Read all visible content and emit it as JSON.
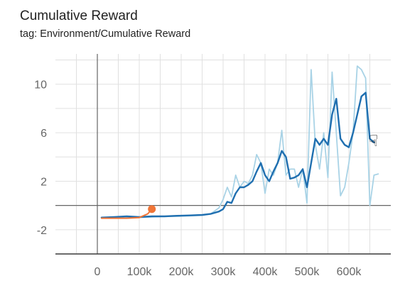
{
  "card": {
    "title": "Cumulative Reward",
    "subtitle": "tag: Environment/Cumulative Reward"
  },
  "cursor": {
    "icon": "hand-pointer-icon",
    "glyph": "☟"
  },
  "chart_data": {
    "type": "line",
    "title": "Cumulative Reward",
    "subtitle": "tag: Environment/Cumulative Reward",
    "xlabel": "",
    "ylabel": "",
    "xlim": [
      -100000,
      700000
    ],
    "ylim": [
      -4,
      12.5
    ],
    "x_ticks": [
      0,
      100000,
      200000,
      300000,
      400000,
      500000,
      600000
    ],
    "x_tick_labels": [
      "0",
      "100k",
      "200k",
      "300k",
      "400k",
      "500k",
      "600k"
    ],
    "y_ticks": [
      -2,
      2,
      6,
      10
    ],
    "y_tick_labels": [
      "-2",
      "2",
      "6",
      "10"
    ],
    "grid": true,
    "colors": {
      "smoothed": "#1f6fb0",
      "raw": "#a9d3e6",
      "orange": "#f07537",
      "orange_raw": "#f8b89a",
      "grid": "#e0e0e0",
      "axis": "#666666",
      "frame_bottom": "#3a3a3a"
    },
    "series": [
      {
        "role": "raw",
        "color": "#a9d3e6",
        "x": [
          10000,
          40000,
          70000,
          100000,
          130000,
          160000,
          190000,
          220000,
          250000,
          270000,
          290000,
          300000,
          310000,
          320000,
          330000,
          340000,
          350000,
          360000,
          370000,
          380000,
          390000,
          400000,
          410000,
          420000,
          430000,
          440000,
          450000,
          460000,
          470000,
          480000,
          490000,
          500000,
          510000,
          520000,
          530000,
          540000,
          550000,
          560000,
          570000,
          580000,
          590000,
          600000,
          610000,
          620000,
          630000,
          640000,
          650000,
          660000,
          670000
        ],
        "values": [
          -1,
          -1,
          -0.9,
          -1,
          -0.95,
          -0.9,
          -0.9,
          -0.85,
          -0.8,
          -0.7,
          -0.2,
          0.5,
          1.5,
          0.7,
          2.5,
          1.5,
          2,
          1.8,
          2.5,
          4.2,
          3.5,
          1,
          3,
          2.5,
          3.5,
          6.2,
          2.5,
          3,
          3,
          1.5,
          3,
          0.2,
          11.2,
          5,
          3,
          6,
          2.3,
          11,
          6,
          0.8,
          1.5,
          3.5,
          6,
          11.5,
          11.2,
          10.5,
          0,
          2.5,
          2.6
        ]
      },
      {
        "role": "smoothed",
        "color": "#1f6fb0",
        "x": [
          10000,
          40000,
          70000,
          100000,
          130000,
          160000,
          190000,
          220000,
          250000,
          270000,
          290000,
          300000,
          310000,
          320000,
          330000,
          340000,
          350000,
          360000,
          370000,
          380000,
          390000,
          400000,
          410000,
          420000,
          430000,
          440000,
          450000,
          460000,
          470000,
          480000,
          490000,
          500000,
          510000,
          520000,
          530000,
          540000,
          550000,
          560000,
          570000,
          580000,
          590000,
          600000,
          610000,
          620000,
          630000,
          640000,
          650000,
          660000
        ],
        "values": [
          -1,
          -0.95,
          -0.9,
          -0.95,
          -0.9,
          -0.9,
          -0.85,
          -0.82,
          -0.78,
          -0.7,
          -0.5,
          -0.3,
          0.3,
          0.2,
          1,
          1.5,
          1.5,
          1.7,
          2,
          2.8,
          3.5,
          2.5,
          2,
          2.8,
          3.5,
          4.5,
          4,
          2.2,
          2.3,
          2.5,
          3,
          1.5,
          3.5,
          5.5,
          5,
          5.5,
          5,
          7.5,
          8.8,
          5.5,
          5,
          4.8,
          6,
          7.5,
          9,
          9.3,
          5.5,
          5.2
        ]
      },
      {
        "role": "second-run",
        "color": "#f07537",
        "x": [
          10000,
          40000,
          70000,
          100000,
          120000,
          130000
        ],
        "values": [
          -1.05,
          -1.05,
          -1.05,
          -1.0,
          -0.7,
          -0.3
        ]
      }
    ],
    "marker": {
      "x": 130000,
      "y": -0.3,
      "color": "#f07537"
    }
  }
}
